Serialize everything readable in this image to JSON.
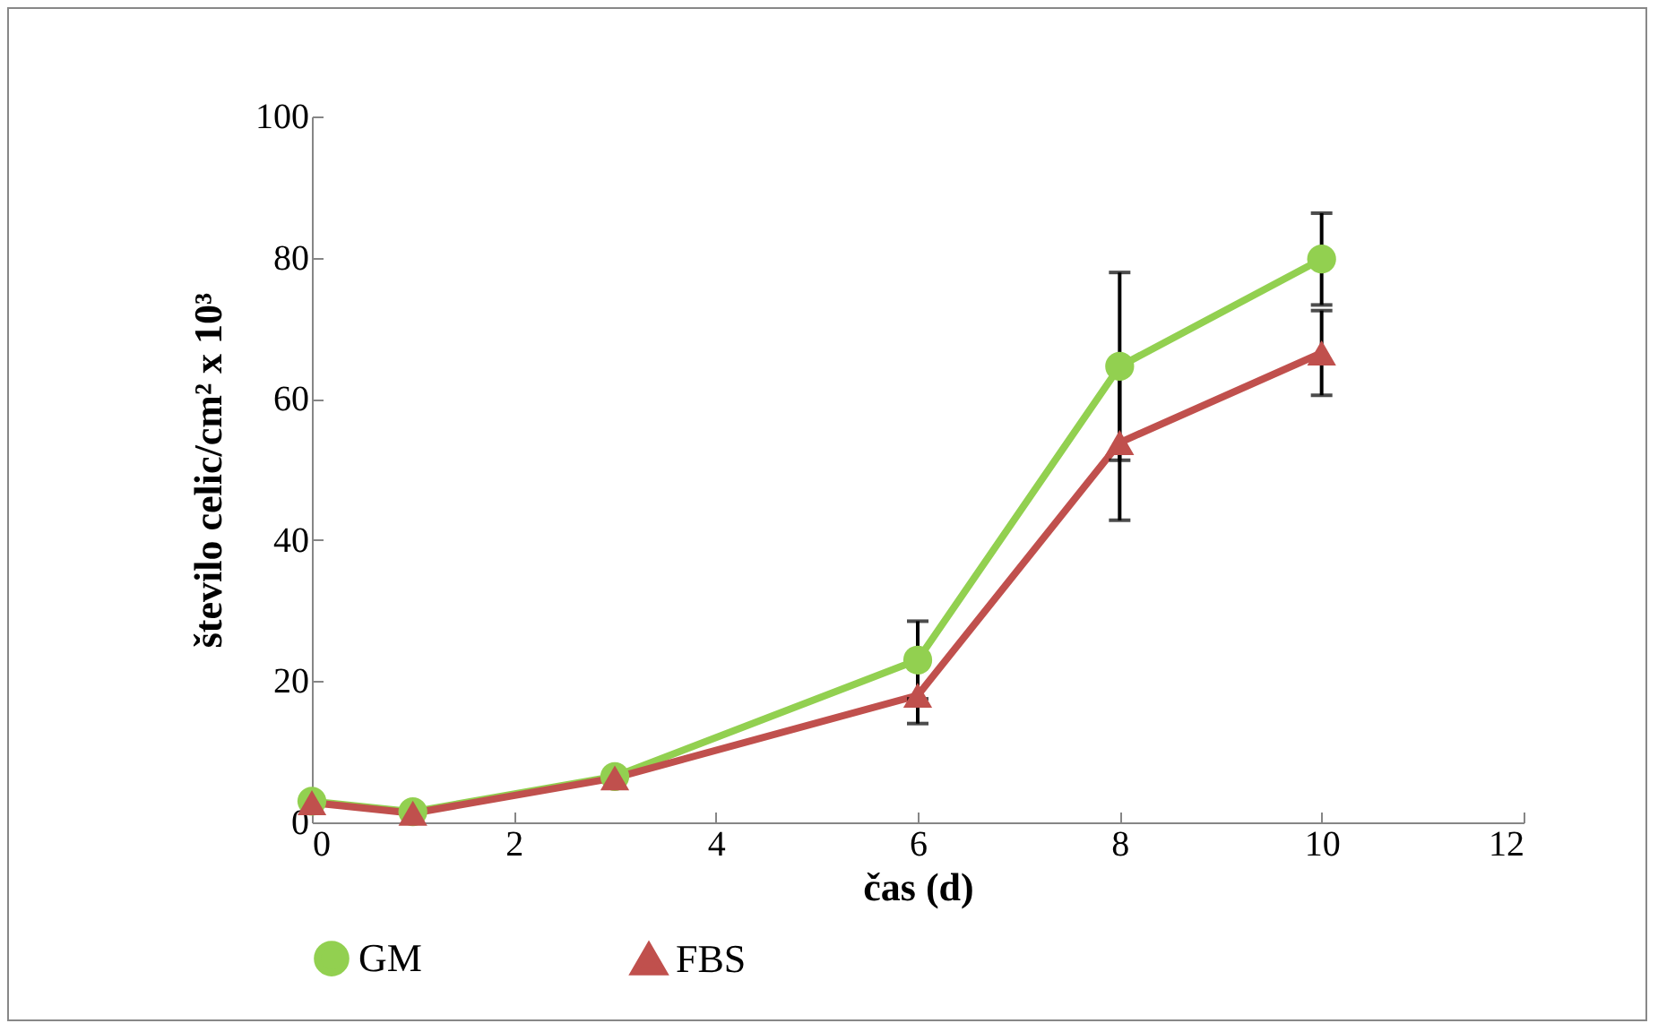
{
  "chart_data": {
    "type": "line",
    "xlabel": "čas (d)",
    "ylabel": "število celic/cm² x 10³",
    "x": [
      0,
      1,
      3,
      6,
      8,
      10
    ],
    "series": [
      {
        "name": "GM",
        "color": "#92d050",
        "marker": "circle",
        "values": [
          3,
          1.5,
          6.5,
          23,
          64.6,
          79.8
        ],
        "errors": [
          null,
          null,
          null,
          5.5,
          13.3,
          6.5
        ]
      },
      {
        "name": "FBS",
        "color": "#c0504d",
        "marker": "triangle",
        "values": [
          2.8,
          1.3,
          6.3,
          18,
          53.8,
          66.5
        ],
        "errors": [
          null,
          null,
          null,
          4,
          11,
          6
        ]
      }
    ],
    "xlim": [
      0,
      12
    ],
    "xticks": [
      0,
      2,
      4,
      6,
      8,
      10,
      12
    ],
    "ylim": [
      0,
      100
    ],
    "yticks": [
      0,
      20,
      40,
      60,
      80,
      100
    ],
    "grid": false,
    "legend": "bottom",
    "line_style": "solid"
  }
}
